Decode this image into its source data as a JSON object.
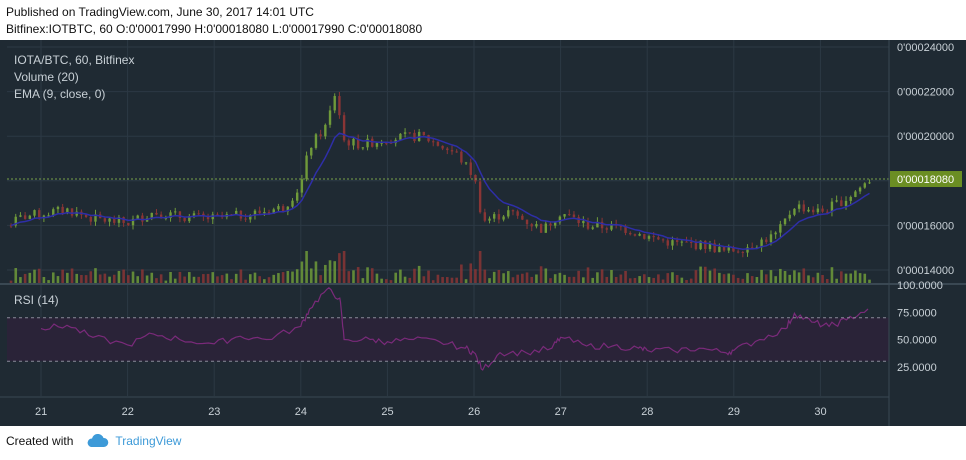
{
  "header": {
    "published": "Published on TradingView.com, June 30, 2017 14:01 UTC",
    "ohlc": "Bitfinex:IOTBTC, 60  O:0'00017990 H:0'00018080 L:0'00017990 C:0'00018080"
  },
  "footer": {
    "created_with": "Created with",
    "brand": "TradingView"
  },
  "colors": {
    "background": "#1f2a33",
    "grid": "#2c3944",
    "up": "#6f9a3a",
    "down": "#8a3535",
    "ema": "#2e2ea8",
    "rsi": "#7a2a7a",
    "rsi_band": "#2a2338",
    "price_tag": "#6b8e23",
    "axis_text": "#c8d0d6"
  },
  "chart_data": [
    {
      "type": "candlestick",
      "title": "IOTA/BTC, 60, Bitfinex",
      "indicators": [
        "Volume (20)",
        "EMA (9, close, 0)"
      ],
      "x_tick_labels": [
        "21",
        "22",
        "23",
        "24",
        "25",
        "26",
        "27",
        "28",
        "29",
        "30"
      ],
      "y_tick_labels": [
        "0'00024000",
        "0'00022000",
        "0'00020000",
        "0'00018000",
        "0'00016000",
        "0'00014000"
      ],
      "y_ticks": [
        0.00024,
        0.00022,
        0.0002,
        0.00018,
        0.00016,
        0.00014
      ],
      "ylim": [
        0.000135,
        0.000245
      ],
      "last_price_label": "0'00018080",
      "last_price": 0.0001808,
      "close_profile": [
        {
          "day": 20.0,
          "close": 0.000161
        },
        {
          "day": 20.4,
          "close": 0.000156
        },
        {
          "day": 20.8,
          "close": 0.000164
        },
        {
          "day": 21.3,
          "close": 0.000167
        },
        {
          "day": 21.6,
          "close": 0.000163
        },
        {
          "day": 22.0,
          "close": 0.000161
        },
        {
          "day": 22.3,
          "close": 0.000166
        },
        {
          "day": 22.6,
          "close": 0.000164
        },
        {
          "day": 23.0,
          "close": 0.000163
        },
        {
          "day": 23.4,
          "close": 0.000165
        },
        {
          "day": 23.8,
          "close": 0.000168
        },
        {
          "day": 24.0,
          "close": 0.000178
        },
        {
          "day": 24.1,
          "close": 0.000195
        },
        {
          "day": 24.3,
          "close": 0.000205
        },
        {
          "day": 24.4,
          "close": 0.00022
        },
        {
          "day": 24.5,
          "close": 0.000198
        },
        {
          "day": 24.7,
          "close": 0.000196
        },
        {
          "day": 25.0,
          "close": 0.000199
        },
        {
          "day": 25.4,
          "close": 0.0002
        },
        {
          "day": 25.8,
          "close": 0.000192
        },
        {
          "day": 26.0,
          "close": 0.000182
        },
        {
          "day": 26.1,
          "close": 0.000162
        },
        {
          "day": 26.4,
          "close": 0.000166
        },
        {
          "day": 26.8,
          "close": 0.000158
        },
        {
          "day": 27.0,
          "close": 0.000166
        },
        {
          "day": 27.3,
          "close": 0.00016
        },
        {
          "day": 27.7,
          "close": 0.000159
        },
        {
          "day": 28.0,
          "close": 0.000155
        },
        {
          "day": 28.3,
          "close": 0.000152
        },
        {
          "day": 28.7,
          "close": 0.000151
        },
        {
          "day": 28.9,
          "close": 0.000148
        },
        {
          "day": 29.2,
          "close": 0.000151
        },
        {
          "day": 29.5,
          "close": 0.000156
        },
        {
          "day": 29.7,
          "close": 0.000169
        },
        {
          "day": 30.0,
          "close": 0.000166
        },
        {
          "day": 30.3,
          "close": 0.000172
        },
        {
          "day": 30.58,
          "close": 0.0001808
        }
      ]
    },
    {
      "type": "line",
      "title": "RSI (14)",
      "y_tick_labels": [
        "100.0000",
        "75.0000",
        "50.0000",
        "25.0000"
      ],
      "y_ticks": [
        100,
        75,
        50,
        25
      ],
      "ylim": [
        0,
        100
      ],
      "band": [
        30,
        70
      ],
      "x": [
        21.0,
        21.3,
        21.6,
        22.0,
        22.3,
        22.6,
        23.0,
        23.3,
        23.6,
        24.0,
        24.1,
        24.3,
        24.45,
        24.5,
        24.8,
        25.0,
        25.3,
        25.6,
        25.9,
        26.0,
        26.1,
        26.3,
        26.6,
        26.9,
        27.0,
        27.3,
        27.6,
        27.9,
        28.0,
        28.3,
        28.6,
        28.9,
        29.0,
        29.3,
        29.6,
        29.7,
        29.9,
        30.1,
        30.3,
        30.55
      ],
      "values": [
        60,
        63,
        52,
        45,
        55,
        50,
        46,
        53,
        50,
        62,
        78,
        96,
        88,
        50,
        50,
        48,
        50,
        48,
        42,
        38,
        22,
        38,
        38,
        42,
        52,
        44,
        44,
        42,
        40,
        40,
        42,
        38,
        40,
        50,
        60,
        74,
        66,
        62,
        68,
        78
      ]
    }
  ]
}
